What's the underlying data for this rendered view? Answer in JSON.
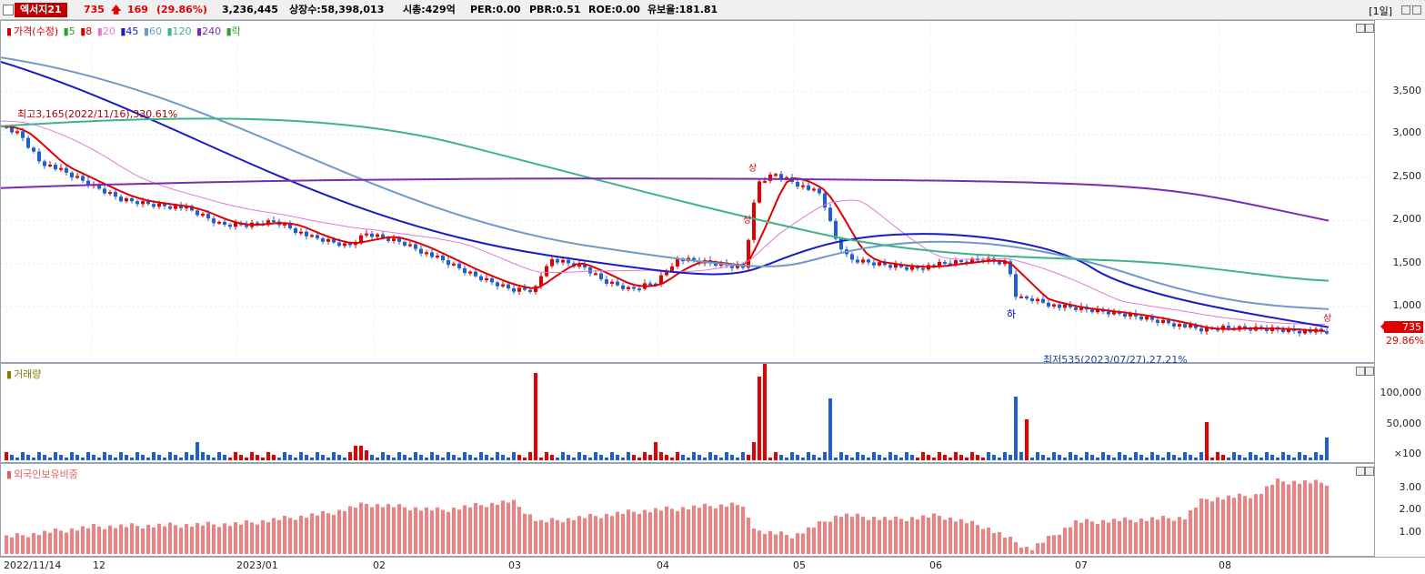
{
  "header": {
    "stock_name": "엑서지21",
    "price": "735",
    "change": "169",
    "change_pct": "(29.86%)",
    "volume": "3,236,445",
    "listed": "상장수:58,398,013",
    "mcap": "시총:429억",
    "per": "PER:0.00",
    "pbr": "PBR:0.51",
    "roe": "ROE:0.00",
    "float": "유보율:181.81",
    "period": "[1일]"
  },
  "legend": {
    "price": "가격(수정)",
    "ma": [
      {
        "label": "5",
        "color": "#2ca02c"
      },
      {
        "label": "8",
        "color": "#e00000"
      },
      {
        "label": "20",
        "color": "#e07ad6"
      },
      {
        "label": "45",
        "color": "#1a1ac8"
      },
      {
        "label": "60",
        "color": "#6f9ac8"
      },
      {
        "label": "120",
        "color": "#3cb38a"
      },
      {
        "label": "240",
        "color": "#7a2bb3"
      }
    ],
    "drop": "락"
  },
  "annotations": {
    "high": "최고3,165(2022/11/16),330.61%",
    "low": "최저535(2023/07/27),27.21%",
    "upper_marks": [
      "상",
      "상",
      "상"
    ],
    "lower_marks": [
      "하"
    ]
  },
  "price_axis": [
    "3,500",
    "3,000",
    "2,500",
    "2,000",
    "1,500",
    "1,000"
  ],
  "price_tag": {
    "value": "735",
    "pct": "29.86%"
  },
  "volume_pane": {
    "title": "거래량",
    "ticks": [
      "100,000",
      "50,000",
      "×100"
    ]
  },
  "foreign_pane": {
    "title": "외국인보유비중",
    "ticks": [
      "3.00",
      "2.00",
      "1.00"
    ]
  },
  "x_labels": [
    "2022/11/14",
    "12",
    "2023/01",
    "02",
    "03",
    "04",
    "05",
    "06",
    "07",
    "08"
  ],
  "colors": {
    "up": "#e00000",
    "down": "#1f5fd6",
    "foreign": "#f08080"
  }
}
